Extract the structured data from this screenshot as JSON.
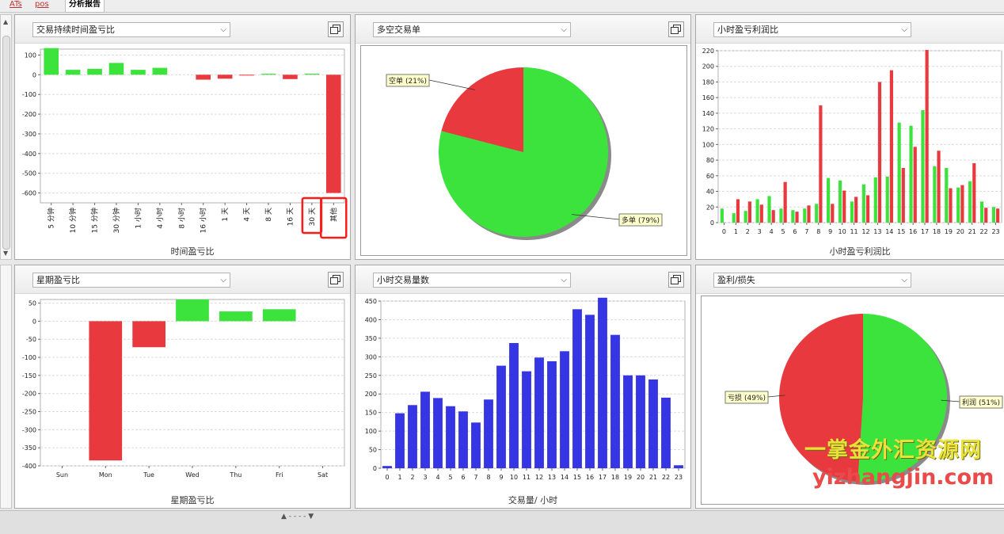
{
  "top_tabs": [
    {
      "label": "ATs"
    },
    {
      "label": "pos"
    },
    {
      "label": "分析报告"
    }
  ],
  "panels": [
    {
      "dropdown": "交易持续时间盈亏比"
    },
    {
      "dropdown": "多空交易单"
    },
    {
      "dropdown": "小时盈亏利润比"
    },
    {
      "dropdown": "星期盈亏比"
    },
    {
      "dropdown": "小时交易量数"
    },
    {
      "dropdown": "盈利/损失"
    }
  ],
  "colors": {
    "green": "#3de33d",
    "red": "#e8393e",
    "blue": "#3535e6"
  },
  "chart_data": [
    {
      "type": "bar",
      "xlabel": "时间盈亏比",
      "categories": [
        "5 分钟",
        "10 分钟",
        "15 分钟",
        "30 分钟",
        "1 小时",
        "4 小时",
        "8 小时",
        "16 小时",
        "1 天",
        "4 天",
        "8 天",
        "16 天",
        "30 天",
        "其他"
      ],
      "values": [
        135,
        25,
        30,
        60,
        25,
        35,
        0,
        -25,
        -20,
        -3,
        5,
        -22,
        5,
        -600
      ],
      "ylim": [
        -650,
        130
      ],
      "yticks": [
        100,
        0,
        -100,
        -200,
        -300,
        -400,
        -500,
        -600
      ],
      "highlighted": [
        "30 天",
        "其他"
      ]
    },
    {
      "type": "pie",
      "slices": [
        {
          "label": "空单",
          "pct_label": "(21%)",
          "value": 21,
          "color": "#e8393e"
        },
        {
          "label": "多单",
          "pct_label": "(79%)",
          "value": 79,
          "color": "#3de33d"
        }
      ]
    },
    {
      "type": "bar",
      "xlabel": "小时盈亏利润比",
      "x": [
        0,
        1,
        2,
        3,
        4,
        5,
        6,
        7,
        8,
        9,
        10,
        11,
        12,
        13,
        14,
        15,
        16,
        17,
        18,
        19,
        20,
        21,
        22,
        23
      ],
      "series": [
        {
          "color": "#3de33d",
          "values": [
            18,
            12,
            15,
            30,
            34,
            18,
            16,
            18,
            24,
            57,
            54,
            27,
            49,
            58,
            59,
            128,
            124,
            144,
            72,
            70,
            45,
            53,
            27,
            20
          ]
        },
        {
          "color": "#e8393e",
          "values": [
            0,
            30,
            27,
            23,
            16,
            52,
            14,
            22,
            150,
            24,
            41,
            33,
            35,
            180,
            195,
            70,
            97,
            221,
            92,
            44,
            48,
            76,
            19,
            18
          ]
        }
      ],
      "ylim": [
        0,
        220
      ],
      "yticks": [
        0,
        20,
        40,
        60,
        80,
        100,
        120,
        140,
        160,
        180,
        200,
        220
      ]
    },
    {
      "type": "bar",
      "xlabel": "星期盈亏比",
      "categories": [
        "Sun",
        "Mon",
        "Tue",
        "Wed",
        "Thu",
        "Fri",
        "Sat"
      ],
      "values": [
        0,
        -385,
        -72,
        60,
        27,
        33,
        0
      ],
      "ylim": [
        -400,
        60
      ],
      "yticks": [
        50,
        0,
        -50,
        -100,
        -150,
        -200,
        -250,
        -300,
        -350,
        -400
      ]
    },
    {
      "type": "bar",
      "xlabel": "交易量/ 小时",
      "x": [
        0,
        1,
        2,
        3,
        4,
        5,
        6,
        7,
        8,
        9,
        10,
        11,
        12,
        13,
        14,
        15,
        16,
        17,
        18,
        19,
        20,
        21,
        22,
        23
      ],
      "values": [
        6,
        148,
        170,
        206,
        189,
        167,
        153,
        123,
        185,
        276,
        337,
        261,
        298,
        288,
        315,
        428,
        413,
        459,
        359,
        250,
        250,
        239,
        190,
        8
      ],
      "ylim": [
        0,
        450
      ],
      "yticks": [
        0,
        50,
        100,
        150,
        200,
        250,
        300,
        350,
        400,
        450
      ]
    },
    {
      "type": "pie",
      "slices": [
        {
          "label": "亏损",
          "pct_label": "(49%)",
          "value": 49,
          "color": "#e8393e"
        },
        {
          "label": "利润",
          "pct_label": "(51%)",
          "value": 51,
          "color": "#3de33d"
        }
      ]
    }
  ],
  "watermark": {
    "line1": "一掌金外汇资源网",
    "line2": "yizhangjin.com"
  }
}
